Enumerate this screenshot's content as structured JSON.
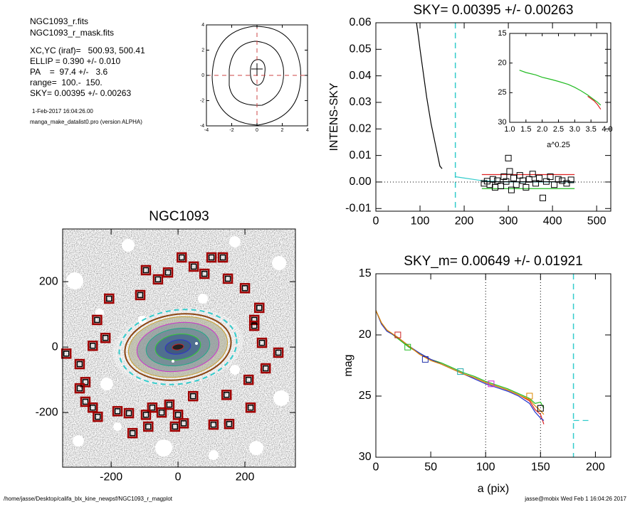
{
  "header": {
    "lines": [
      "NGC1093_r.fits",
      "NGC1093_r_mask.fits",
      "XC,YC (iraf)=   500.93, 500.41",
      "ELLIP = 0.390 +/- 0.010",
      "PA    =  97.4 +/-   3.6",
      "range=  100.-  150.",
      "SKY= 0.00395 +/- 0.00263"
    ],
    "date": "1-Feb-2017 16:04:26.00",
    "program": "manga_make_datalist0.pro (version ALPHA)"
  },
  "footer": {
    "path": "/home/jasse/Desktop/califa_blx_kine_newpsf/NGC1093_r_magplot",
    "stamp": "jasse@mobix  Wed Feb  1 16:04:26 2017"
  },
  "chart_data": [
    {
      "type": "contour",
      "xlim": [
        -4,
        4
      ],
      "ylim": [
        -4,
        4
      ],
      "xticks": [
        -4,
        -2,
        0,
        2,
        4
      ],
      "yticks": [
        -4,
        -2,
        0,
        2,
        4
      ],
      "series": []
    },
    {
      "type": "line",
      "title": "SKY= 0.00395 +/- 0.00263",
      "ylabel": "INTENS-SKY",
      "xlim": [
        0,
        532
      ],
      "ylim": [
        -0.011,
        0.06
      ],
      "xticks": [
        0,
        100,
        200,
        300,
        400,
        500
      ],
      "yticks": [
        0.06,
        0.05,
        0.04,
        0.03,
        0.02,
        0.01,
        {
          "value": 0,
          "label": "0.00"
        },
        -0.01
      ],
      "vlines": [
        {
          "x": 180,
          "style": "dashed",
          "color": "#33cccc"
        }
      ],
      "hlines": [
        {
          "y": 0,
          "style": "dotted",
          "color": "#000000"
        }
      ],
      "series": [
        {
          "style": "line",
          "color": "#000000",
          "x": [
            92,
            97,
            100,
            105,
            110,
            115,
            120,
            125,
            130,
            135,
            140,
            145,
            150
          ],
          "values": [
            0.06,
            0.054,
            0.05,
            0.044,
            0.038,
            0.032,
            0.027,
            0.022,
            0.018,
            0.014,
            0.01,
            0.006,
            0.005
          ]
        },
        {
          "style": "line",
          "color": "#33cccc",
          "x": [
            180,
            200,
            220,
            240,
            260,
            300,
            350,
            400,
            450
          ],
          "values": [
            0.002,
            0.0015,
            0.001,
            0.0005,
            0.0003,
            0,
            0,
            0,
            0
          ]
        },
        {
          "style": "line",
          "color": "#dd2222",
          "x": [
            240,
            450
          ],
          "values": [
            0.0028,
            0.0028
          ]
        },
        {
          "style": "line",
          "color": "#22bb22",
          "x": [
            240,
            450
          ],
          "values": [
            -0.0025,
            -0.0025
          ]
        },
        {
          "style": "line",
          "color": "#000000",
          "x": [
            240,
            450
          ],
          "values": [
            0.0001,
            0.0001
          ]
        },
        {
          "style": "markers",
          "color": "#000000",
          "x": [
            245,
            252,
            258,
            265,
            270,
            275,
            283,
            290,
            295,
            300,
            303,
            307,
            312,
            318,
            326,
            333,
            340,
            347,
            355,
            362,
            370,
            378,
            386,
            395,
            404,
            413,
            422,
            432,
            442
          ],
          "values": [
            -0.0005,
            0.0003,
            -0.001,
            0.001,
            -0.002,
            0.0005,
            -0.0015,
            0.002,
            0.0002,
            0.009,
            0.004,
            -0.003,
            0.0015,
            -0.001,
            0.0025,
            0.0005,
            -0.002,
            0.001,
            0.003,
            -0.0005,
            0.0015,
            -0.006,
            0.0002,
            0.002,
            -0.001,
            0.001,
            0.0005,
            -0.0005,
            0.0008
          ]
        }
      ]
    },
    {
      "type": "line",
      "xlabel": "a^0.25",
      "xlim": [
        1.0,
        4.0
      ],
      "ylim": [
        30,
        15
      ],
      "xticks": [
        {
          "value": 1,
          "label": "1.0"
        },
        1.5,
        {
          "value": 2,
          "label": "2.0"
        },
        2.5,
        {
          "value": 3,
          "label": "3.0"
        },
        3.5,
        {
          "value": 4,
          "label": "4.0"
        }
      ],
      "yticks": [
        15,
        20,
        25,
        30
      ],
      "series": [
        {
          "style": "line",
          "color": "#22bb22",
          "x": [
            1.3,
            1.5,
            1.8,
            2.0,
            2.3,
            2.5,
            2.8,
            3.0,
            3.2,
            3.4,
            3.6,
            3.7,
            3.8
          ],
          "values": [
            21.2,
            21.6,
            22.0,
            22.4,
            22.8,
            23.1,
            23.6,
            24.1,
            24.7,
            25.4,
            26.2,
            26.6,
            27.1
          ]
        },
        {
          "style": "line",
          "color": "#dd2222",
          "x": [
            3.4,
            3.6,
            3.7,
            3.8
          ],
          "values": [
            25.6,
            26.4,
            27,
            27.8
          ]
        }
      ]
    },
    {
      "type": "image",
      "title": "NGC1093",
      "xlim": [
        -345,
        351
      ],
      "ylim": [
        -367,
        361
      ],
      "xticks": [
        -200,
        0,
        200
      ],
      "yticks": [
        -200,
        0,
        200
      ],
      "series": [
        {
          "style": "boxes",
          "color": "#a00000",
          "x": [
            11,
            47,
            100,
            134,
            -96,
            -30,
            79,
            -60,
            149,
            -113,
            200,
            -206,
            243,
            -242,
            228,
            228,
            -217,
            -255,
            251,
            300,
            -334,
            -294,
            262,
            211,
            -277,
            -294,
            -277,
            -255,
            145,
            45,
            -26,
            -77,
            -240,
            217,
            -181,
            -147,
            -96,
            -49,
            0,
            17,
            -89,
            106,
            153,
            -9,
            -136
          ],
          "values": [
            274,
            246,
            274,
            274,
            235,
            228,
            224,
            207,
            209,
            159,
            180,
            148,
            120,
            83,
            83,
            65,
            28,
            4,
            13,
            -17,
            -20,
            -52,
            -65,
            -100,
            -107,
            -126,
            -167,
            -185,
            -146,
            -150,
            -176,
            -185,
            -213,
            -185,
            -196,
            -202,
            -207,
            -200,
            -207,
            -233,
            -243,
            -237,
            -235,
            -243,
            -263
          ]
        }
      ]
    },
    {
      "type": "line",
      "title": "SKY_m=  0.00649 +/- 0.01921",
      "xlabel": "a (pix)",
      "ylabel": "mag",
      "xlim": [
        0,
        214
      ],
      "ylim": [
        30,
        15
      ],
      "xticks": [
        0,
        50,
        100,
        150,
        200
      ],
      "yticks": [
        15,
        20,
        25,
        30
      ],
      "vlines": [
        {
          "x": 100,
          "style": "dotted",
          "color": "#000000"
        },
        {
          "x": 150,
          "style": "dotted",
          "color": "#000000"
        },
        {
          "x": 180,
          "style": "dashed",
          "color": "#33cccc"
        }
      ],
      "series": [
        {
          "style": "line",
          "color": "#22bb22",
          "x": [
            0,
            5,
            10,
            20,
            30,
            40,
            50,
            60,
            70,
            80,
            90,
            100,
            110,
            120,
            130,
            140,
            145,
            150,
            153
          ],
          "values": [
            18,
            19,
            19.6,
            20.3,
            21,
            21.5,
            22,
            22.3,
            22.7,
            23.1,
            23.4,
            23.8,
            24.1,
            24.4,
            24.8,
            25.2,
            25.6,
            25.5,
            26
          ]
        },
        {
          "style": "line",
          "color": "#dd2222",
          "x": [
            0,
            5,
            10,
            20,
            30,
            40,
            50,
            60,
            70,
            80,
            90,
            100,
            110,
            120,
            130,
            140,
            145,
            150,
            153
          ],
          "values": [
            18,
            19,
            19.6,
            20.2,
            20.9,
            21.6,
            22,
            22.4,
            22.8,
            23.2,
            23.5,
            23.9,
            24.2,
            24.5,
            24.9,
            25.4,
            26.1,
            26.5,
            27.3
          ]
        },
        {
          "style": "line",
          "color": "#2233cc",
          "x": [
            0,
            5,
            10,
            20,
            30,
            40,
            50,
            60,
            70,
            80,
            90,
            100,
            110,
            120,
            130,
            140,
            145,
            150,
            153
          ],
          "values": [
            18,
            19.1,
            19.7,
            20.2,
            20.9,
            21.5,
            22,
            22.4,
            22.8,
            23.2,
            23.6,
            24,
            24.3,
            24.6,
            25,
            25.6,
            26.3,
            26.8,
            27
          ]
        },
        {
          "style": "line",
          "color": "#dd8800",
          "x": [
            0,
            5,
            10,
            20,
            30,
            40,
            50,
            60,
            70,
            80,
            90,
            100,
            110,
            120,
            130,
            140,
            145,
            150,
            153
          ],
          "values": [
            18,
            19,
            19.6,
            20.2,
            20.9,
            21.6,
            22.1,
            22.4,
            22.8,
            23.2,
            23.5,
            23.9,
            24.2,
            24.5,
            24.9,
            25.3,
            25.8,
            26.2,
            26.5
          ]
        },
        {
          "style": "dashed",
          "color": "#33cccc",
          "x": [
            180,
            195
          ],
          "values": [
            27,
            27
          ]
        },
        {
          "style": "markers",
          "colors": [
            "#cc2222",
            "#22bb22",
            "#2233aa",
            "#22aaaa",
            "#cc22cc",
            "#dd8800",
            "#000000"
          ],
          "x": [
            20,
            29,
            45,
            77,
            105,
            140,
            150
          ],
          "values": [
            20,
            21,
            22,
            23,
            24,
            25,
            26
          ]
        }
      ]
    }
  ]
}
